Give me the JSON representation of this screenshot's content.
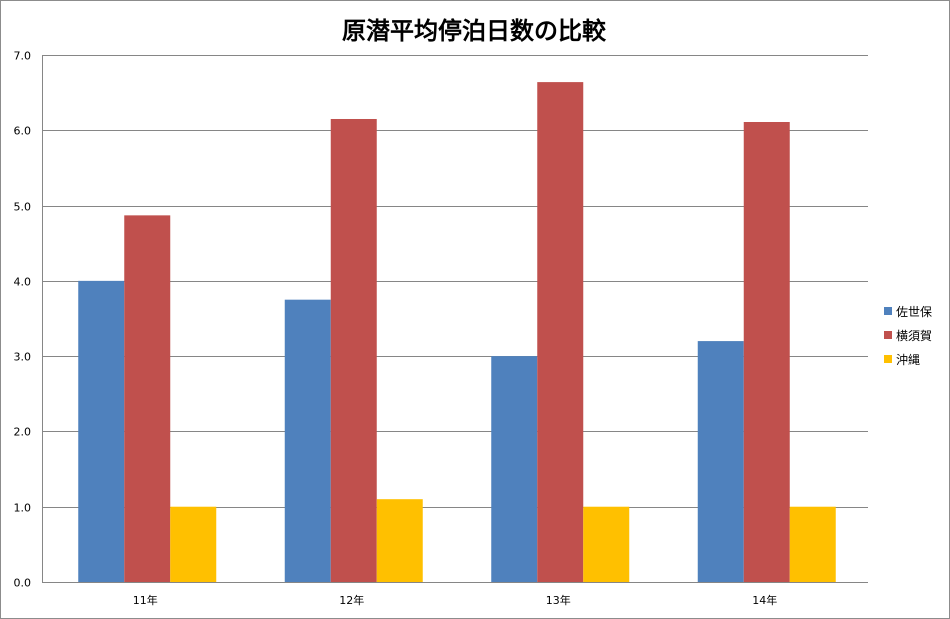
{
  "chart_data": {
    "type": "bar",
    "title": "原潜平均停泊日数の比較",
    "xlabel": "",
    "ylabel": "",
    "categories": [
      "11年",
      "12年",
      "13年",
      "14年"
    ],
    "series": [
      {
        "name": "佐世保",
        "color": "#4f81bd",
        "values": [
          4.0,
          3.75,
          3.0,
          3.2
        ]
      },
      {
        "name": "横須賀",
        "color": "#c0504d",
        "values": [
          4.87,
          6.15,
          6.64,
          6.11
        ]
      },
      {
        "name": "沖縄",
        "color": "#ffc000",
        "values": [
          1.0,
          1.1,
          1.0,
          1.0
        ]
      }
    ],
    "ylim": [
      0,
      7
    ],
    "yticks": [
      "0.0",
      "1.0",
      "2.0",
      "3.0",
      "4.0",
      "5.0",
      "6.0",
      "7.0"
    ],
    "grid": true,
    "legend_position": "right"
  }
}
